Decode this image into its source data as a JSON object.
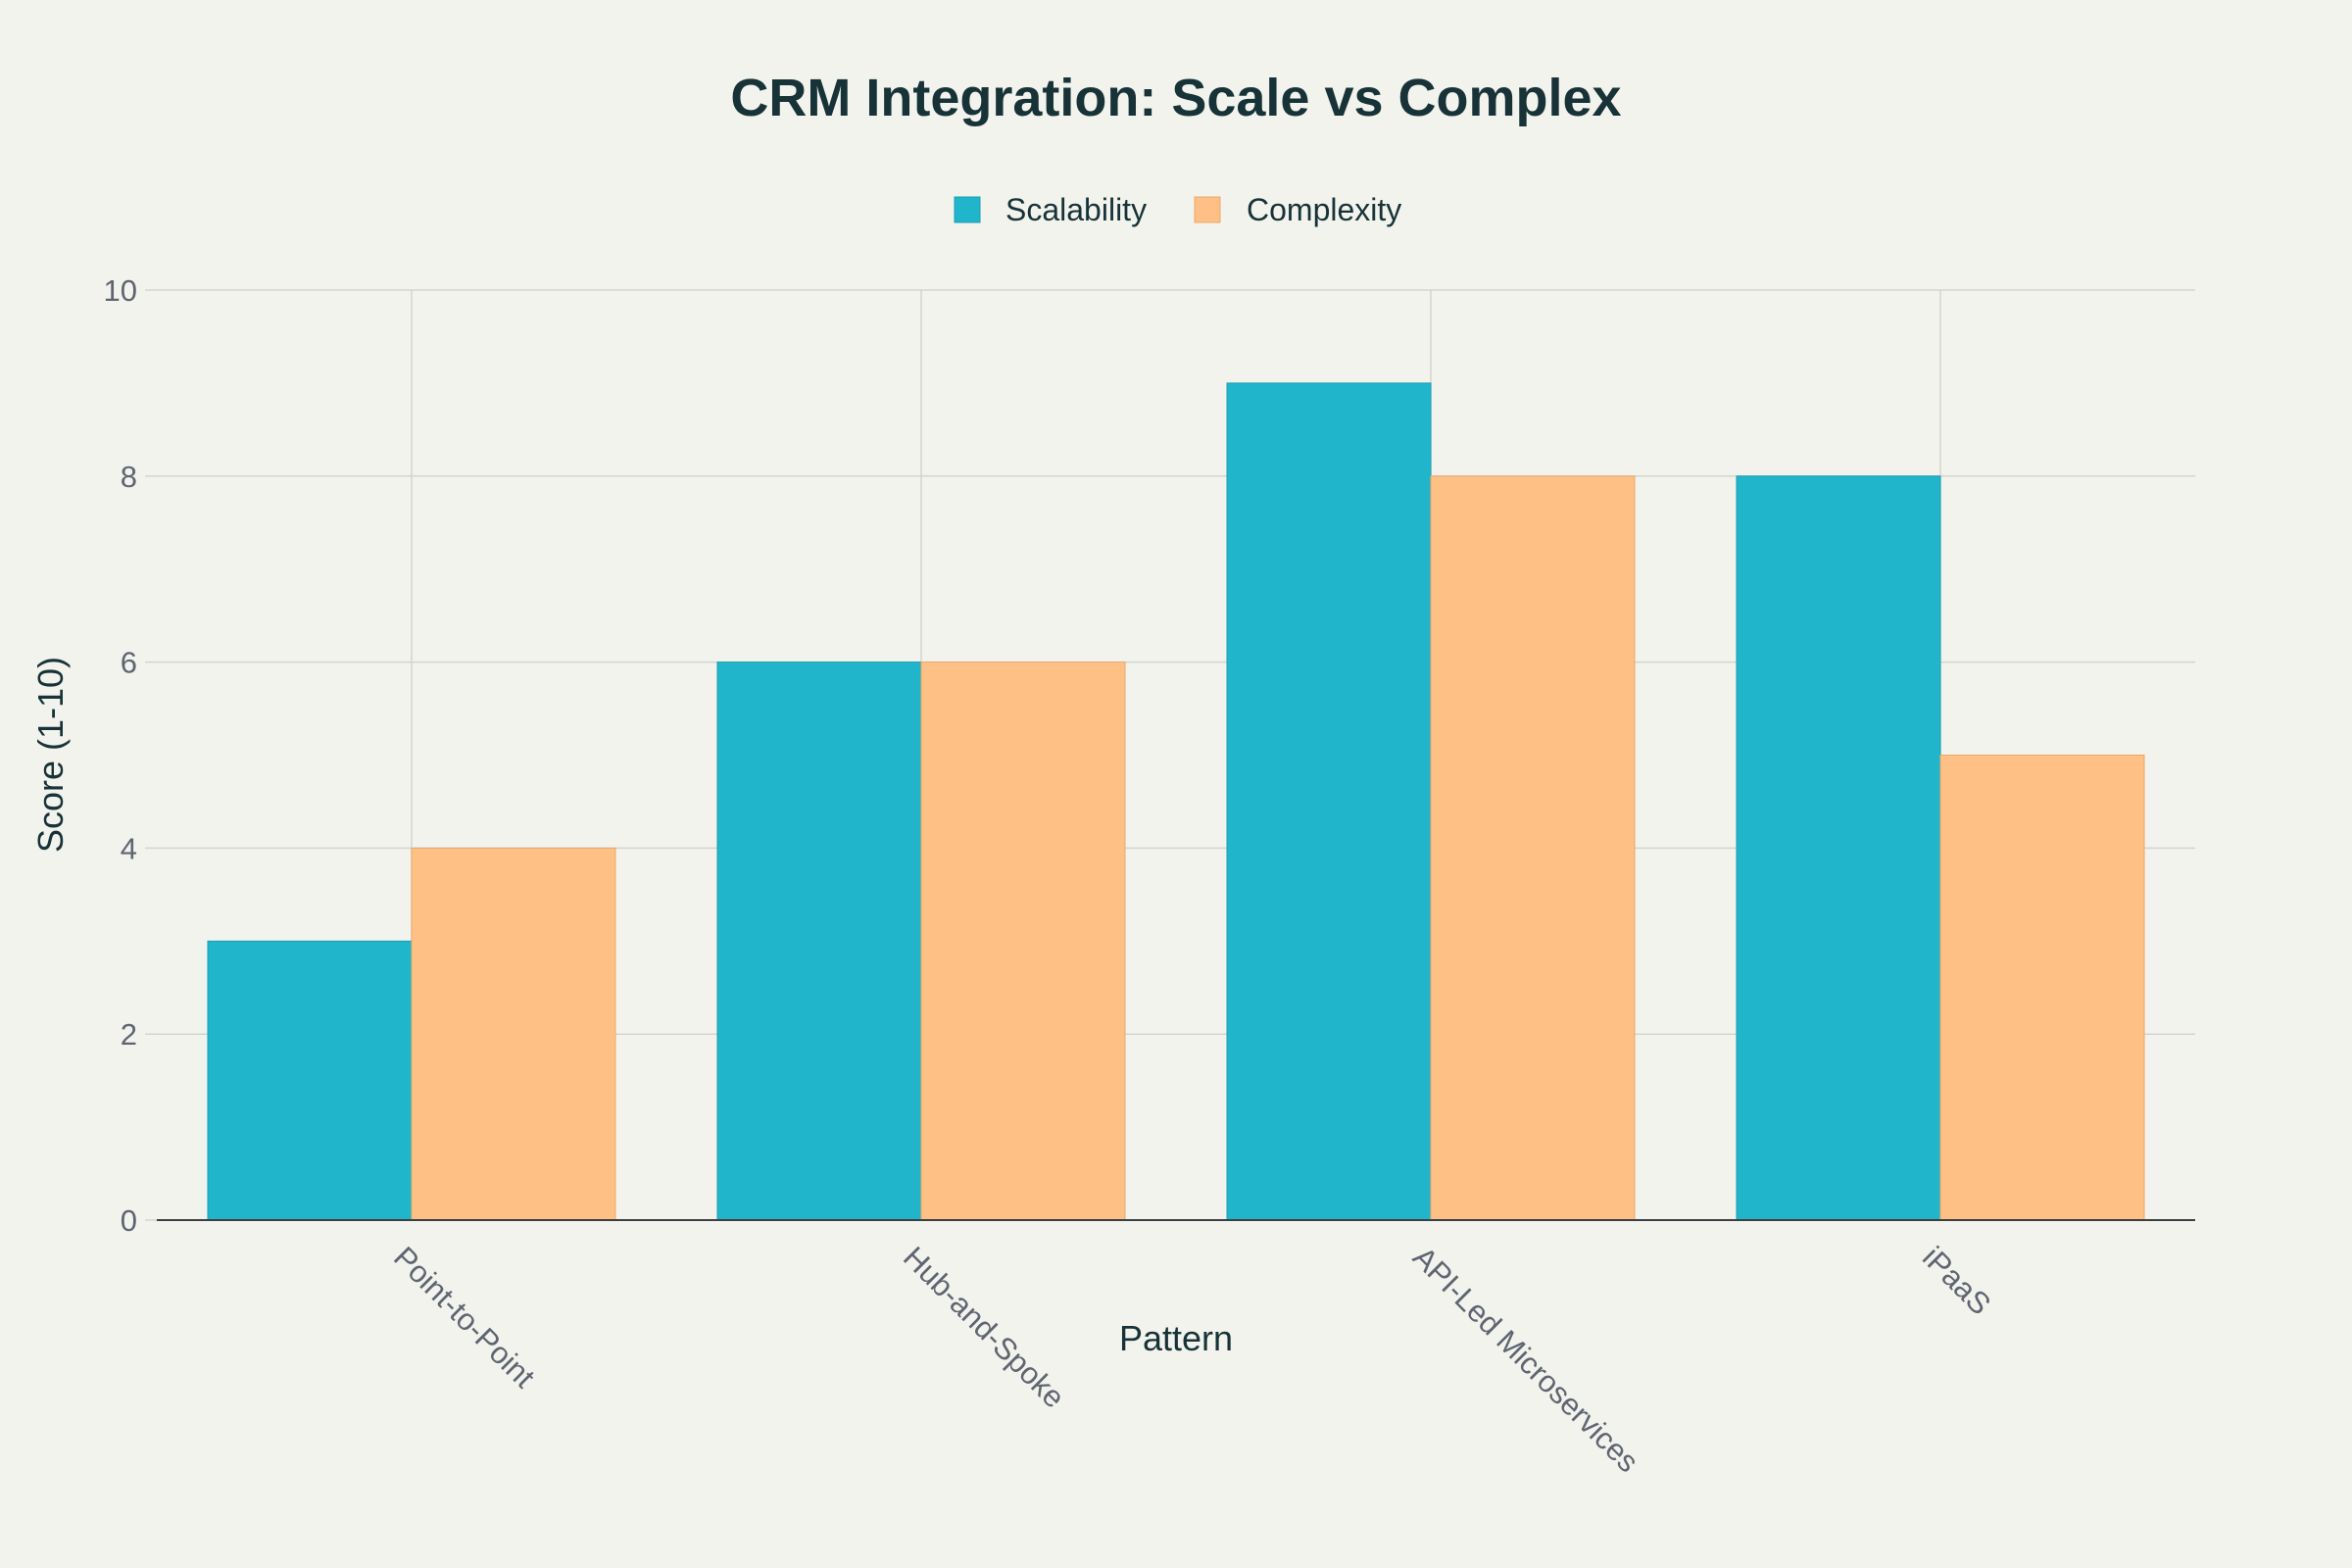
{
  "chart_data": {
    "type": "bar",
    "title": "CRM Integration: Scale vs Complex",
    "xlabel": "Pattern",
    "ylabel": "Score (1-10)",
    "categories": [
      "Point-to-Point",
      "Hub-and-Spoke",
      "API-Led Microservices",
      "iPaaS"
    ],
    "series": [
      {
        "name": "Scalability",
        "values": [
          3,
          6,
          9,
          8
        ],
        "color": "#21b5cb"
      },
      {
        "name": "Complexity",
        "values": [
          4,
          6,
          8,
          5
        ],
        "color": "#ffc085"
      }
    ],
    "ylim": [
      0,
      10
    ],
    "yticks": [
      0,
      2,
      4,
      6,
      8,
      10
    ],
    "grid": true,
    "legend_position": "top-center"
  }
}
